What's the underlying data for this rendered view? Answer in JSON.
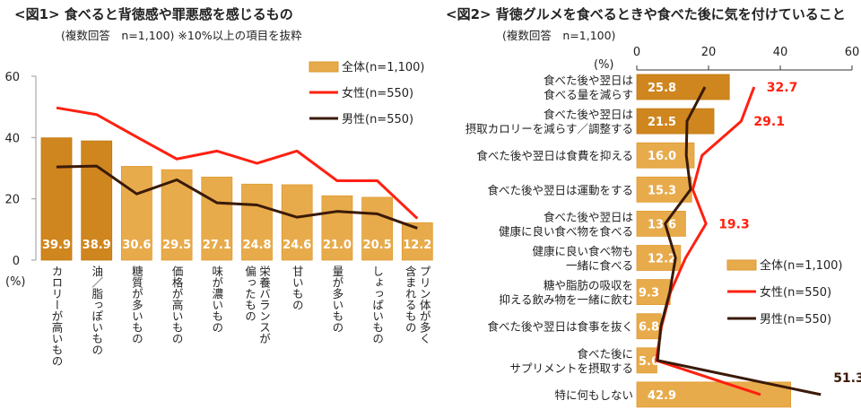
{
  "colors": {
    "bar_dark": "#D0861E",
    "bar_light": "#E8AB4B",
    "female": "#FF2010",
    "male": "#3A1A08"
  },
  "chart_data": [
    {
      "type": "bar+line",
      "title": "<図1> 食べると背徳感や罪悪感を感じるもの",
      "subtitle": "(複数回答　n=1,100) ※10%以上の項目を抜粋",
      "ylabel": "(%)",
      "ylim": [
        0,
        60
      ],
      "yticks": [
        "0",
        "20",
        "40",
        "60"
      ],
      "categories": [
        [
          "カロリーが高いもの"
        ],
        [
          "油／脂っぽいもの"
        ],
        [
          "糖質が多いもの"
        ],
        [
          "価格が高いもの"
        ],
        [
          "味が濃いもの"
        ],
        [
          "栄養バランスが",
          "偏ったもの"
        ],
        [
          "甘いもの"
        ],
        [
          "量が多いもの"
        ],
        [
          "しょっぱいもの"
        ],
        [
          "プリン体が多く",
          "含まれるもの"
        ]
      ],
      "highlight_count": 2,
      "legend_position": "top-right",
      "series": [
        {
          "name": "全体(n=1,100)",
          "kind": "bar",
          "values": [
            39.9,
            38.9,
            30.6,
            29.5,
            27.1,
            24.8,
            24.6,
            21.0,
            20.5,
            12.2
          ],
          "labels": [
            "39.9",
            "38.9",
            "30.6",
            "29.5",
            "27.1",
            "24.8",
            "24.6",
            "21.0",
            "20.5",
            "12.2"
          ]
        },
        {
          "name": "女性(n=550)",
          "kind": "line",
          "values": [
            49.7,
            47.5,
            40.2,
            33.0,
            35.6,
            31.6,
            35.6,
            25.9,
            25.9,
            13.6
          ]
        },
        {
          "name": "男性(n=550)",
          "kind": "line",
          "values": [
            30.4,
            30.7,
            21.6,
            26.2,
            18.7,
            18.0,
            14.0,
            15.9,
            15.1,
            10.4
          ]
        }
      ]
    },
    {
      "type": "horizontal-bar+line",
      "title": "<図2> 背徳グルメを食べるときや食べた後に気を付けていること",
      "subtitle": "(複数回答　n=1,100)",
      "xlabel": "(%)",
      "xlim": [
        0,
        60
      ],
      "xticks": [
        "0",
        "20",
        "40",
        "60"
      ],
      "categories": [
        [
          "食べた後や翌日は",
          "食べる量を減らす"
        ],
        [
          "食べた後や翌日は",
          "摂取カロリーを減らす／調整する"
        ],
        [
          "食べた後や翌日は食費を抑える"
        ],
        [
          "食べた後や翌日は運動をする"
        ],
        [
          "食べた後や翌日は",
          "健康に良い食べ物を食べる"
        ],
        [
          "健康に良い食べ物も",
          "一緒に食べる"
        ],
        [
          "糖や脂肪の吸収を",
          "抑える飲み物を一緒に飲む"
        ],
        [
          "食べた後や翌日は食事を抜く"
        ],
        [
          "食べた後に",
          "サプリメントを摂取する"
        ],
        [
          "特に何もしない"
        ]
      ],
      "highlight_count": 2,
      "legend_position": "right",
      "series": [
        {
          "name": "全体(n=1,100)",
          "kind": "bar",
          "values": [
            25.8,
            21.5,
            16.0,
            15.3,
            13.6,
            12.2,
            9.3,
            6.8,
            5.6,
            42.9
          ],
          "labels": [
            "25.8",
            "21.5",
            "16.0",
            "15.3",
            "13.6",
            "12.2",
            "9.3",
            "6.8",
            "5.6",
            "42.9"
          ]
        },
        {
          "name": "女性(n=550)",
          "kind": "line",
          "values": [
            32.7,
            29.1,
            18.2,
            15.6,
            19.3,
            13.6,
            9.4,
            6.9,
            5.4,
            34.5
          ],
          "annotations": {
            "0": "32.7",
            "1": "29.1",
            "4": "19.3"
          }
        },
        {
          "name": "男性(n=550)",
          "kind": "line",
          "values": [
            19.0,
            14.0,
            13.8,
            15.0,
            7.9,
            10.8,
            9.2,
            6.7,
            5.8,
            51.3
          ],
          "annotations": {
            "9": "51.3"
          }
        }
      ]
    }
  ]
}
